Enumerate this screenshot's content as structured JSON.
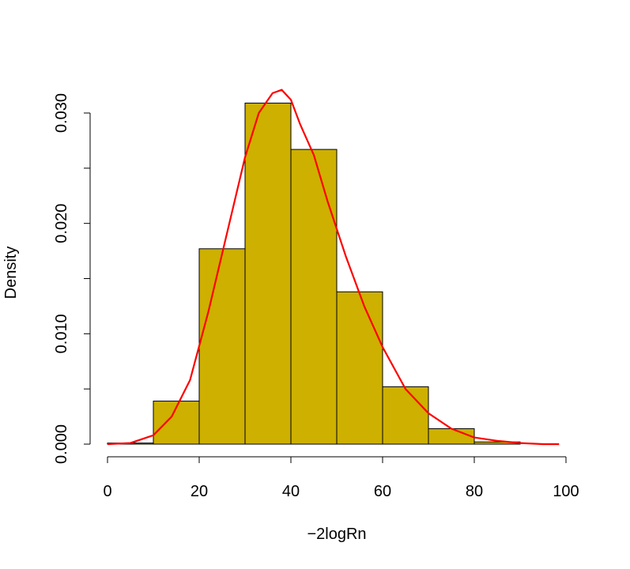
{
  "chart_data": {
    "type": "bar",
    "xlabel": "−2logRn",
    "ylabel": "Density",
    "xlim": [
      0,
      100
    ],
    "ylim": [
      0,
      0.032
    ],
    "x_ticks": [
      "0",
      "20",
      "40",
      "60",
      "80",
      "100"
    ],
    "y_ticks": [
      "0.000",
      "0.010",
      "0.020",
      "0.030"
    ],
    "y_tick_values": [
      0,
      0.005,
      0.01,
      0.015,
      0.02,
      0.025,
      0.03
    ],
    "bins": [
      {
        "start": 0,
        "end": 10,
        "value": 0.0001
      },
      {
        "start": 10,
        "end": 20,
        "value": 0.0039
      },
      {
        "start": 20,
        "end": 30,
        "value": 0.0177
      },
      {
        "start": 30,
        "end": 40,
        "value": 0.0309
      },
      {
        "start": 40,
        "end": 50,
        "value": 0.0267
      },
      {
        "start": 50,
        "end": 60,
        "value": 0.0138
      },
      {
        "start": 60,
        "end": 70,
        "value": 0.0052
      },
      {
        "start": 70,
        "end": 80,
        "value": 0.0014
      },
      {
        "start": 80,
        "end": 90,
        "value": 0.0002
      }
    ],
    "density_curve": {
      "x": [
        0,
        5,
        10,
        14,
        18,
        22,
        26,
        30,
        33,
        36,
        38,
        40,
        42,
        45,
        48,
        52,
        56,
        60,
        65,
        70,
        75,
        80,
        85,
        90,
        95,
        98.5
      ],
      "y": [
        0.0,
        0.0001,
        0.0008,
        0.0025,
        0.0058,
        0.012,
        0.019,
        0.026,
        0.03,
        0.0318,
        0.0321,
        0.0312,
        0.029,
        0.0262,
        0.022,
        0.017,
        0.0125,
        0.0088,
        0.005,
        0.0028,
        0.0014,
        0.0006,
        0.0003,
        0.0001,
        0.0,
        0.0
      ]
    },
    "colors": {
      "bar_fill": "#CDB000",
      "bar_stroke": "#000000",
      "curve": "#FF0000"
    }
  }
}
